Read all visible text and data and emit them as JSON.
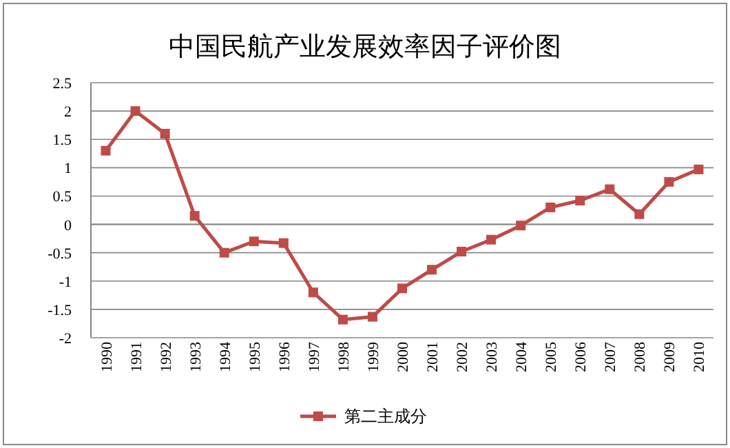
{
  "chart_data": {
    "type": "line",
    "title": "中国民航产业发展效率因子评价图",
    "categories": [
      "1990",
      "1991",
      "1992",
      "1993",
      "1994",
      "1995",
      "1996",
      "1997",
      "1998",
      "1999",
      "2000",
      "2001",
      "2002",
      "2003",
      "2004",
      "2005",
      "2006",
      "2007",
      "2008",
      "2009",
      "2010"
    ],
    "series": [
      {
        "name": "第二主成分",
        "color": "#be4b48",
        "values": [
          1.3,
          2.0,
          1.6,
          0.15,
          -0.5,
          -0.3,
          -0.33,
          -1.2,
          -1.68,
          -1.63,
          -1.13,
          -0.8,
          -0.48,
          -0.27,
          -0.02,
          0.3,
          0.42,
          0.62,
          0.18,
          0.75,
          0.97
        ]
      }
    ],
    "ylim": [
      -2,
      2.5
    ],
    "yticks": [
      {
        "value": -2,
        "label": "-2"
      },
      {
        "value": -1.5,
        "label": "-1.5"
      },
      {
        "value": -1,
        "label": "-1"
      },
      {
        "value": -0.5,
        "label": "-0.5"
      },
      0,
      0.5,
      1,
      1.5,
      2,
      2.5
    ],
    "grid": "y",
    "legend": "bottom",
    "marker": "square",
    "line_style": "solid"
  }
}
